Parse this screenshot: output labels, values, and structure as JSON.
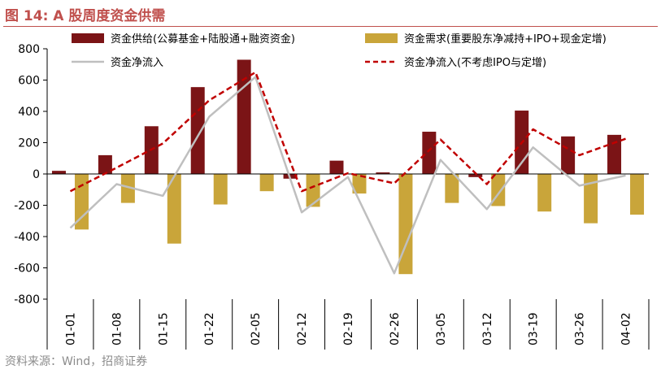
{
  "figure": {
    "title": "图 14:  A 股周度资金供需",
    "source": "资料来源：Wind，招商证券"
  },
  "chart_data": {
    "type": "bar",
    "categories": [
      "01-01",
      "01-08",
      "01-15",
      "01-22",
      "02-05",
      "02-12",
      "02-19",
      "02-26",
      "03-05",
      "03-12",
      "03-19",
      "03-26",
      "04-02"
    ],
    "ylim": [
      -800,
      800
    ],
    "yticks": [
      800,
      600,
      400,
      200,
      0,
      -200,
      -400,
      -600,
      -800
    ],
    "grid": false,
    "legend_position": "top",
    "series": [
      {
        "name": "资金供给(公募基金+陆股通+融资资金)",
        "type": "bar",
        "color": "#7b1416",
        "values": [
          20,
          120,
          305,
          555,
          730,
          -30,
          85,
          10,
          270,
          -20,
          405,
          240,
          250
        ]
      },
      {
        "name": "资金需求(重要股东净减持+IPO+现金定增)",
        "type": "bar",
        "color": "#c9a53a",
        "values": [
          -355,
          -185,
          -445,
          -195,
          -110,
          -210,
          -125,
          -640,
          -185,
          -205,
          -240,
          -315,
          -260
        ]
      },
      {
        "name": "资金净流入",
        "type": "line",
        "color": "#bfbfbf",
        "style": "solid",
        "values": [
          -345,
          -65,
          -140,
          365,
          620,
          -245,
          -20,
          -635,
          90,
          -225,
          170,
          -75,
          -10
        ]
      },
      {
        "name": "资金净流入(不考虑IPO与定增)",
        "type": "line",
        "color": "#c00000",
        "style": "dashed",
        "values": [
          -110,
          40,
          195,
          470,
          650,
          -110,
          5,
          -60,
          220,
          -65,
          285,
          120,
          225
        ]
      }
    ]
  }
}
